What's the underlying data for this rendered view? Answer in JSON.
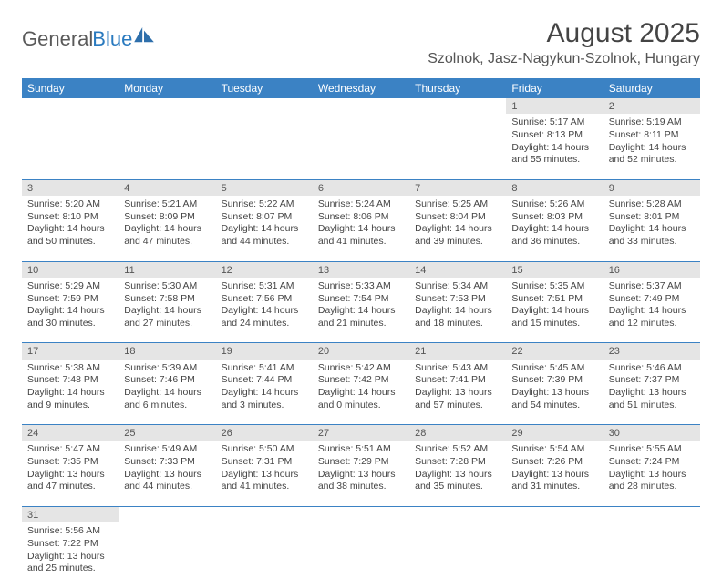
{
  "logo": {
    "text_primary": "General",
    "text_secondary": "Blue"
  },
  "title": "August 2025",
  "location": "Szolnok, Jasz-Nagykun-Szolnok, Hungary",
  "colors": {
    "header_bg": "#3b82c4",
    "header_text": "#ffffff",
    "daynum_bg": "#e5e5e5",
    "cell_border": "#3b82c4",
    "body_text": "#444444",
    "logo_gray": "#5a5a5a",
    "logo_blue": "#2a7abf"
  },
  "week_headers": [
    "Sunday",
    "Monday",
    "Tuesday",
    "Wednesday",
    "Thursday",
    "Friday",
    "Saturday"
  ],
  "weeks": [
    {
      "nums": [
        "",
        "",
        "",
        "",
        "",
        "1",
        "2"
      ],
      "cells": [
        "",
        "",
        "",
        "",
        "",
        "Sunrise: 5:17 AM\nSunset: 8:13 PM\nDaylight: 14 hours and 55 minutes.",
        "Sunrise: 5:19 AM\nSunset: 8:11 PM\nDaylight: 14 hours and 52 minutes."
      ]
    },
    {
      "nums": [
        "3",
        "4",
        "5",
        "6",
        "7",
        "8",
        "9"
      ],
      "cells": [
        "Sunrise: 5:20 AM\nSunset: 8:10 PM\nDaylight: 14 hours and 50 minutes.",
        "Sunrise: 5:21 AM\nSunset: 8:09 PM\nDaylight: 14 hours and 47 minutes.",
        "Sunrise: 5:22 AM\nSunset: 8:07 PM\nDaylight: 14 hours and 44 minutes.",
        "Sunrise: 5:24 AM\nSunset: 8:06 PM\nDaylight: 14 hours and 41 minutes.",
        "Sunrise: 5:25 AM\nSunset: 8:04 PM\nDaylight: 14 hours and 39 minutes.",
        "Sunrise: 5:26 AM\nSunset: 8:03 PM\nDaylight: 14 hours and 36 minutes.",
        "Sunrise: 5:28 AM\nSunset: 8:01 PM\nDaylight: 14 hours and 33 minutes."
      ]
    },
    {
      "nums": [
        "10",
        "11",
        "12",
        "13",
        "14",
        "15",
        "16"
      ],
      "cells": [
        "Sunrise: 5:29 AM\nSunset: 7:59 PM\nDaylight: 14 hours and 30 minutes.",
        "Sunrise: 5:30 AM\nSunset: 7:58 PM\nDaylight: 14 hours and 27 minutes.",
        "Sunrise: 5:31 AM\nSunset: 7:56 PM\nDaylight: 14 hours and 24 minutes.",
        "Sunrise: 5:33 AM\nSunset: 7:54 PM\nDaylight: 14 hours and 21 minutes.",
        "Sunrise: 5:34 AM\nSunset: 7:53 PM\nDaylight: 14 hours and 18 minutes.",
        "Sunrise: 5:35 AM\nSunset: 7:51 PM\nDaylight: 14 hours and 15 minutes.",
        "Sunrise: 5:37 AM\nSunset: 7:49 PM\nDaylight: 14 hours and 12 minutes."
      ]
    },
    {
      "nums": [
        "17",
        "18",
        "19",
        "20",
        "21",
        "22",
        "23"
      ],
      "cells": [
        "Sunrise: 5:38 AM\nSunset: 7:48 PM\nDaylight: 14 hours and 9 minutes.",
        "Sunrise: 5:39 AM\nSunset: 7:46 PM\nDaylight: 14 hours and 6 minutes.",
        "Sunrise: 5:41 AM\nSunset: 7:44 PM\nDaylight: 14 hours and 3 minutes.",
        "Sunrise: 5:42 AM\nSunset: 7:42 PM\nDaylight: 14 hours and 0 minutes.",
        "Sunrise: 5:43 AM\nSunset: 7:41 PM\nDaylight: 13 hours and 57 minutes.",
        "Sunrise: 5:45 AM\nSunset: 7:39 PM\nDaylight: 13 hours and 54 minutes.",
        "Sunrise: 5:46 AM\nSunset: 7:37 PM\nDaylight: 13 hours and 51 minutes."
      ]
    },
    {
      "nums": [
        "24",
        "25",
        "26",
        "27",
        "28",
        "29",
        "30"
      ],
      "cells": [
        "Sunrise: 5:47 AM\nSunset: 7:35 PM\nDaylight: 13 hours and 47 minutes.",
        "Sunrise: 5:49 AM\nSunset: 7:33 PM\nDaylight: 13 hours and 44 minutes.",
        "Sunrise: 5:50 AM\nSunset: 7:31 PM\nDaylight: 13 hours and 41 minutes.",
        "Sunrise: 5:51 AM\nSunset: 7:29 PM\nDaylight: 13 hours and 38 minutes.",
        "Sunrise: 5:52 AM\nSunset: 7:28 PM\nDaylight: 13 hours and 35 minutes.",
        "Sunrise: 5:54 AM\nSunset: 7:26 PM\nDaylight: 13 hours and 31 minutes.",
        "Sunrise: 5:55 AM\nSunset: 7:24 PM\nDaylight: 13 hours and 28 minutes."
      ]
    },
    {
      "nums": [
        "31",
        "",
        "",
        "",
        "",
        "",
        ""
      ],
      "cells": [
        "Sunrise: 5:56 AM\nSunset: 7:22 PM\nDaylight: 13 hours and 25 minutes.",
        "",
        "",
        "",
        "",
        "",
        ""
      ]
    }
  ]
}
